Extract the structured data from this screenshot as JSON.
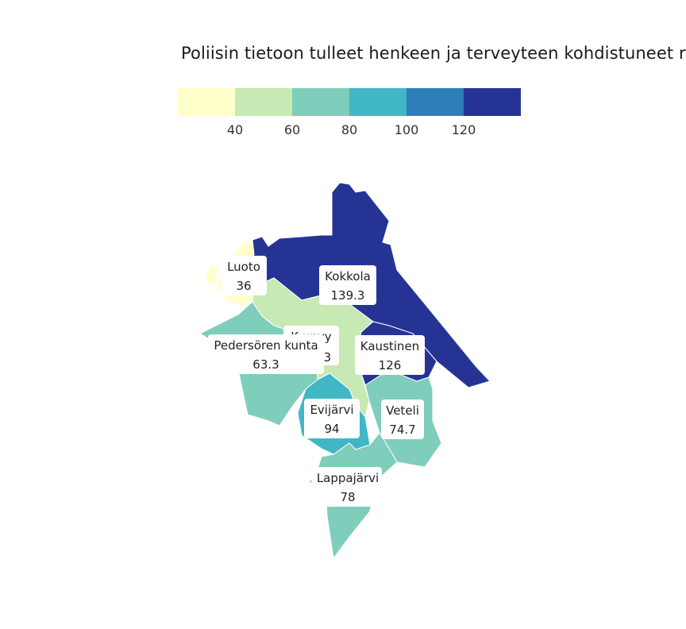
{
  "title": "Poliisin tietoon tulleet henkeen ja terveyteen kohdistuneet ri",
  "legend": {
    "colors": [
      "#ffffcc",
      "#c7e9b4",
      "#7fcdbb",
      "#41b6c4",
      "#2c7fb8",
      "#253494"
    ],
    "ticks": [
      "40",
      "60",
      "80",
      "100",
      "120"
    ]
  },
  "regions": [
    {
      "name": "Luoto",
      "value": "36",
      "color": "#ffffcc"
    },
    {
      "name": "Kokkola",
      "value": "139.3",
      "color": "#253494"
    },
    {
      "name": "Kruunupyy",
      "value_partial": ".3",
      "name_partial": "K    upyy",
      "color": "#c7e9b4"
    },
    {
      "name": "Pedersören kunta",
      "value": "63.3",
      "color": "#7fcdbb"
    },
    {
      "name": "Kaustinen",
      "value": "126",
      "color": "#253494"
    },
    {
      "name": "Evijärvi",
      "value": "94",
      "color": "#41b6c4"
    },
    {
      "name": "Veteli",
      "value": "74.7",
      "color": "#7fcdbb"
    },
    {
      "name": "Lappajärvi",
      "value": "78",
      "color": "#7fcdbb"
    }
  ]
}
